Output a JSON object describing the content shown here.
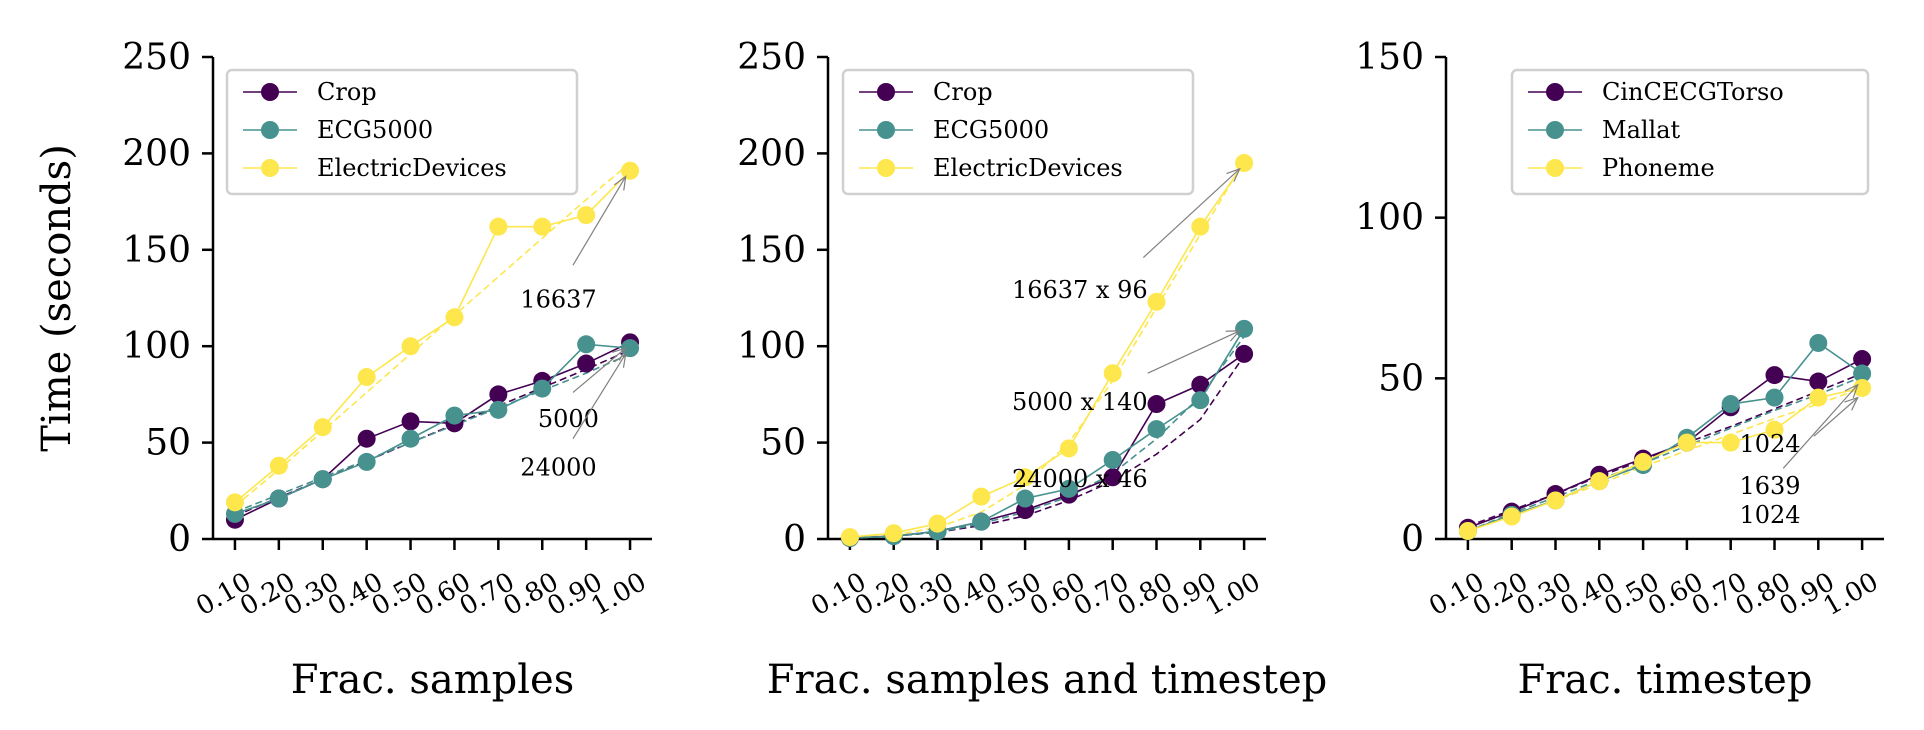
{
  "chart_data": [
    {
      "type": "line",
      "xlabel": "Frac. samples",
      "ylabel": "Time (seconds)",
      "ylim": [
        0,
        250
      ],
      "yticks": [
        0,
        50,
        100,
        150,
        200,
        250
      ],
      "x": [
        0.1,
        0.2,
        0.3,
        0.4,
        0.5,
        0.6,
        0.7,
        0.8,
        0.9,
        1.0
      ],
      "xtick_labels": [
        "0.10",
        "0.20",
        "0.30",
        "0.40",
        "0.50",
        "0.60",
        "0.70",
        "0.80",
        "0.90",
        "1.00"
      ],
      "legend_position": "top-left",
      "series": [
        {
          "name": "Crop",
          "color": "#440154",
          "values": [
            10,
            21,
            31,
            52,
            61,
            60,
            75,
            82,
            91,
            102
          ],
          "trend": [
            12,
            21.5,
            31,
            40.5,
            50,
            59.5,
            69,
            78.5,
            88,
            98
          ]
        },
        {
          "name": "ECG5000",
          "color": "#47928f",
          "values": [
            13,
            21,
            31,
            40,
            52,
            64,
            67,
            78,
            101,
            99
          ],
          "trend": [
            14,
            23,
            32,
            41,
            50,
            59,
            68,
            77,
            86,
            96
          ]
        },
        {
          "name": "ElectricDevices",
          "color": "#fde74c",
          "values": [
            19,
            38,
            58,
            84,
            100,
            115,
            162,
            162,
            168,
            191
          ],
          "trend": [
            17,
            36,
            56,
            76,
            96,
            116,
            136,
            156,
            176,
            195
          ]
        }
      ],
      "annotations": [
        {
          "text": "16637",
          "x": 0.75,
          "y": 120,
          "arrow_from": [
            0.87,
            142
          ],
          "arrow_to": [
            0.99,
            188
          ]
        },
        {
          "text": "5000",
          "x": 0.79,
          "y": 58,
          "arrow_from": [
            0.87,
            76
          ],
          "arrow_to": [
            0.99,
            99
          ]
        },
        {
          "text": "24000",
          "x": 0.75,
          "y": 33,
          "arrow_from": [
            0.87,
            52
          ],
          "arrow_to": [
            0.99,
            96
          ]
        }
      ]
    },
    {
      "type": "line",
      "xlabel": "Frac. samples and timestep",
      "ylabel": "",
      "ylim": [
        0,
        250
      ],
      "yticks": [
        0,
        50,
        100,
        150,
        200,
        250
      ],
      "x": [
        0.1,
        0.2,
        0.3,
        0.4,
        0.5,
        0.6,
        0.7,
        0.8,
        0.9,
        1.0
      ],
      "xtick_labels": [
        "0.10",
        "0.20",
        "0.30",
        "0.40",
        "0.50",
        "0.60",
        "0.70",
        "0.80",
        "0.90",
        "1.00"
      ],
      "legend_position": "top-left",
      "series": [
        {
          "name": "Crop",
          "color": "#440154",
          "values": [
            0.5,
            1.5,
            4,
            9,
            15,
            23,
            32,
            70,
            80,
            96
          ],
          "trend": [
            0.3,
            1.5,
            3.5,
            7,
            12,
            20,
            30,
            44,
            62,
            95
          ]
        },
        {
          "name": "ECG5000",
          "color": "#47928f",
          "values": [
            0.5,
            1.5,
            4,
            9,
            21,
            26,
            41,
            57,
            72,
            109
          ],
          "trend": [
            0.3,
            1.5,
            3.5,
            8,
            14,
            22,
            34,
            52,
            74,
            105
          ]
        },
        {
          "name": "ElectricDevices",
          "color": "#fde74c",
          "values": [
            1,
            3,
            8,
            22,
            32,
            47,
            86,
            123,
            162,
            195
          ],
          "trend": [
            0.5,
            2,
            6,
            14,
            28,
            50,
            82,
            120,
            158,
            196
          ]
        }
      ],
      "annotations": [
        {
          "text": "16637 x 96",
          "x": 0.47,
          "y": 125,
          "arrow_from": [
            0.77,
            146
          ],
          "arrow_to": [
            0.99,
            192
          ]
        },
        {
          "text": "5000 x 140",
          "x": 0.47,
          "y": 67,
          "arrow_from": [
            0.78,
            86
          ],
          "arrow_to": [
            0.99,
            108
          ]
        },
        {
          "text": "24000 x 46",
          "x": 0.47,
          "y": 27,
          "arrow_from": null,
          "arrow_to": null
        }
      ]
    },
    {
      "type": "line",
      "xlabel": "Frac. timestep",
      "ylabel": "",
      "ylim": [
        0,
        150
      ],
      "yticks": [
        0,
        50,
        100,
        150
      ],
      "x": [
        0.1,
        0.2,
        0.3,
        0.4,
        0.5,
        0.6,
        0.7,
        0.8,
        0.9,
        1.0
      ],
      "xtick_labels": [
        "0.10",
        "0.20",
        "0.30",
        "0.40",
        "0.50",
        "0.60",
        "0.70",
        "0.80",
        "0.90",
        "1.00"
      ],
      "legend_position": "top-right",
      "series": [
        {
          "name": "CinCECGTorso",
          "color": "#440154",
          "values": [
            3.5,
            8.5,
            14,
            20,
            25,
            30,
            41,
            51,
            49,
            56
          ],
          "trend": [
            4,
            9,
            14,
            19.5,
            24.5,
            30,
            35,
            40.5,
            46,
            51.5
          ]
        },
        {
          "name": "Mallat",
          "color": "#47928f",
          "values": [
            2.5,
            7.5,
            12,
            18,
            23,
            31.5,
            42,
            44,
            61,
            51.5
          ],
          "trend": [
            2.5,
            8,
            13,
            18.5,
            23.5,
            29,
            34.5,
            40,
            45,
            50.5
          ]
        },
        {
          "name": "Phoneme",
          "color": "#fde74c",
          "values": [
            2.5,
            7,
            12,
            18,
            24,
            30,
            30,
            34,
            44,
            47
          ],
          "trend": [
            2.5,
            7.5,
            12,
            17,
            22.5,
            27.5,
            32.5,
            37.5,
            42,
            47
          ]
        }
      ],
      "annotations": [
        {
          "text": "1024",
          "x": 0.72,
          "y": 27,
          "arrow_from": [
            0.89,
            32
          ],
          "arrow_to": [
            0.99,
            44
          ]
        },
        {
          "text": "1639",
          "x": 0.72,
          "y": 14,
          "arrow_from": [
            0.82,
            22
          ],
          "arrow_to": [
            0.99,
            48
          ]
        },
        {
          "text": "1024",
          "x": 0.72,
          "y": 5,
          "arrow_from": null,
          "arrow_to": null
        }
      ]
    }
  ]
}
